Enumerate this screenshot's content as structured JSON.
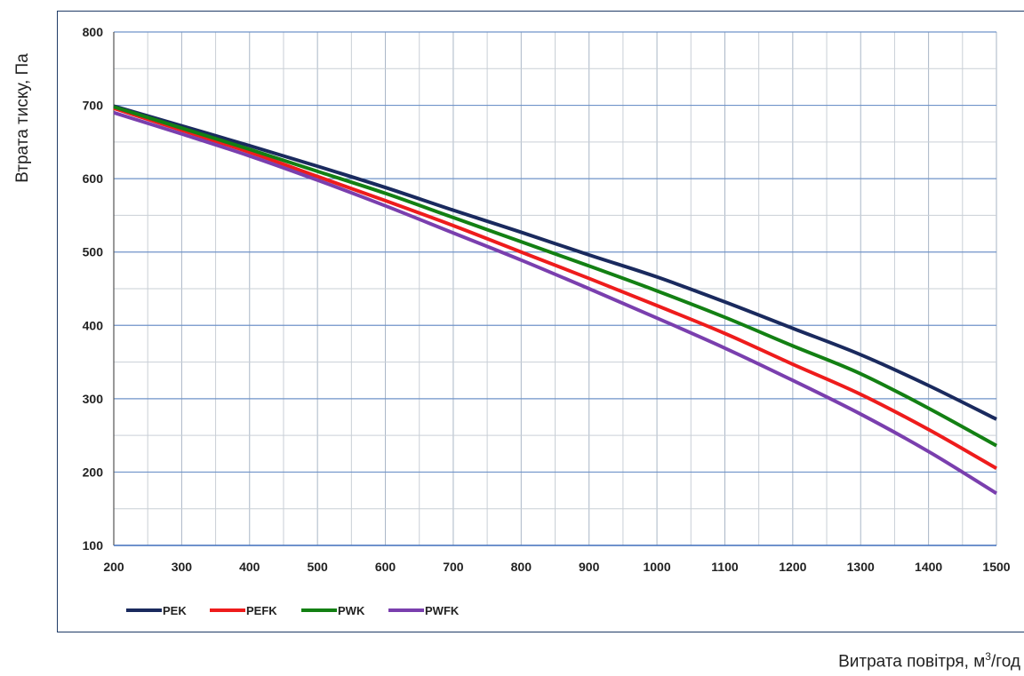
{
  "chart_data": {
    "type": "line",
    "title": "",
    "xlabel": "Витрата повітря, м",
    "xlabel_sup": "3",
    "xlabel_tail": "/год",
    "ylabel": "Втрата тиску, Па",
    "xlim": [
      200,
      1500
    ],
    "ylim": [
      100,
      800
    ],
    "xticks": [
      200,
      300,
      400,
      500,
      600,
      700,
      800,
      900,
      1000,
      1100,
      1200,
      1300,
      1400,
      1500
    ],
    "yticks": [
      100,
      200,
      300,
      400,
      500,
      600,
      700,
      800
    ],
    "grid": true,
    "legend_position": "bottom-left",
    "x": [
      200,
      300,
      400,
      500,
      600,
      700,
      800,
      900,
      1000,
      1100,
      1200,
      1300,
      1400,
      1500
    ],
    "series": [
      {
        "name": "PEK",
        "color": "#1a2a5e",
        "values": [
          699,
          672,
          645,
          617,
          588,
          557,
          527,
          496,
          466,
          432,
          396,
          360,
          318,
          272
        ]
      },
      {
        "name": "PEFK",
        "color": "#ee1c1c",
        "values": [
          696,
          666,
          636,
          603,
          570,
          536,
          500,
          464,
          427,
          389,
          347,
          306,
          258,
          205
        ]
      },
      {
        "name": "PWK",
        "color": "#138013",
        "values": [
          698,
          669,
          640,
          610,
          580,
          547,
          514,
          481,
          447,
          411,
          372,
          334,
          287,
          236
        ]
      },
      {
        "name": "PWFK",
        "color": "#7a3fae",
        "values": [
          690,
          661,
          631,
          598,
          563,
          526,
          489,
          450,
          410,
          369,
          325,
          279,
          228,
          171
        ]
      }
    ]
  }
}
